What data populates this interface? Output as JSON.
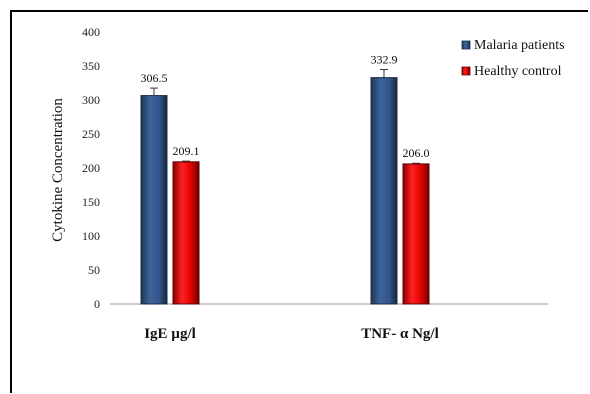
{
  "chart_data": {
    "type": "bar",
    "categories": [
      "IgE µg/l",
      "TNF- α Ng/l"
    ],
    "series": [
      {
        "name": "Malaria patients",
        "values": [
          306.5,
          332.9
        ],
        "error": [
          11,
          12
        ],
        "color": "#2F4E7E"
      },
      {
        "name": "Healthy control",
        "values": [
          209.1,
          206.0
        ],
        "error": [
          1,
          1
        ],
        "color": "#E00000"
      }
    ],
    "data_labels": [
      [
        "306.5",
        "332.9"
      ],
      [
        "209.1",
        "206.0"
      ]
    ],
    "ylabel": "Cytokine Concentration",
    "ylim": [
      0,
      400
    ],
    "yticks": [
      0,
      50,
      100,
      150,
      200,
      250,
      300,
      350,
      400
    ],
    "legend_position": "top-right",
    "grid": false
  }
}
